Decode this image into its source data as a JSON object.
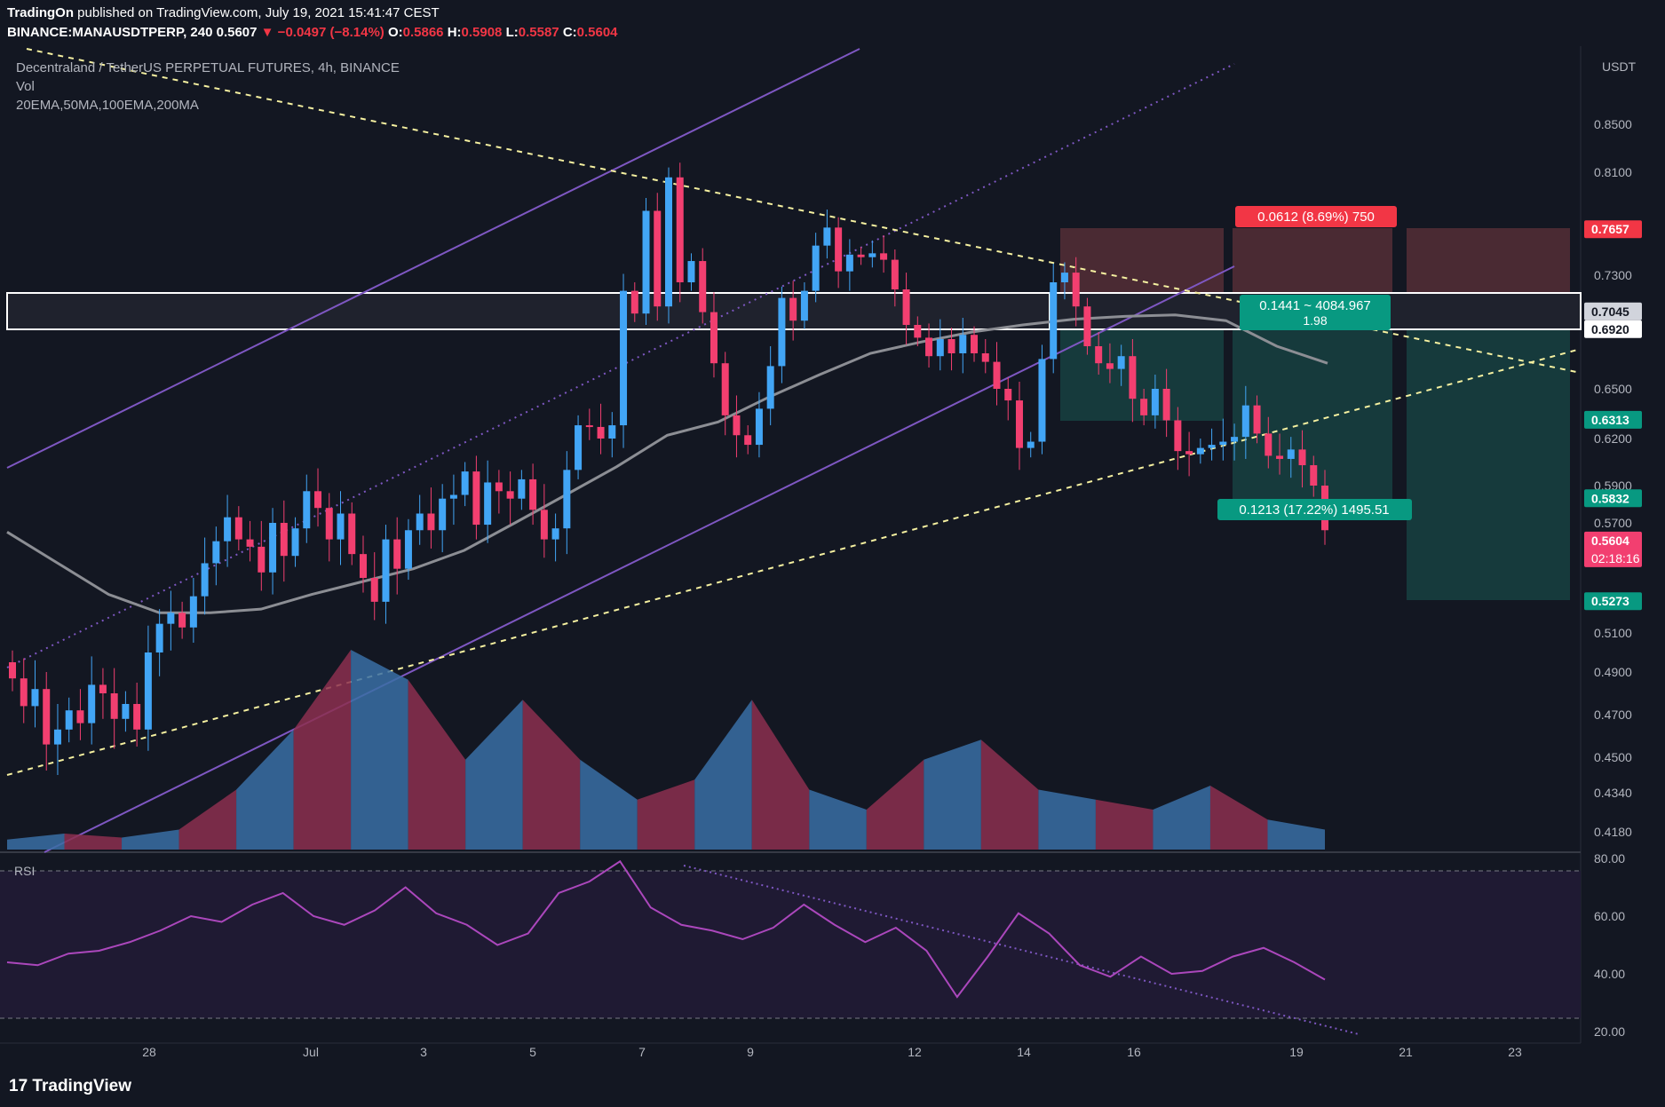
{
  "header": {
    "publisher": "TradingOn",
    "published_text": "published on TradingView.com, July 19, 2021 15:41:47 CEST",
    "symbol": "BINANCE:MANAUSDTPERP, 240",
    "price": "0.5607",
    "change": "▼ −0.0497 (−8.14%)",
    "o_label": "O:",
    "o_value": "0.5866",
    "h_label": "H:",
    "h_value": "0.5908",
    "l_label": "L:",
    "l_value": "0.5587",
    "c_label": "C:",
    "c_value": "0.5604"
  },
  "legend": {
    "title": "Decentraland / TetherUS PERPETUAL FUTURES, 4h, BINANCE",
    "vol": "Vol",
    "ma": "20EMA,50MA,100EMA,200MA"
  },
  "footer": {
    "brand": "TradingView"
  },
  "colors": {
    "background": "#131722",
    "up": "#42a5f5",
    "down": "#f23f70",
    "channel": "#7e57c2",
    "trendline": "#f5f0a0",
    "ma": "#8c8e94",
    "rsi": "#ab47bc",
    "stop_zone": "#4a2a33",
    "target_zone": "#163a3c",
    "accent_green": "#089981",
    "accent_red": "#f23645"
  },
  "chart_data": [
    {
      "type": "candlestick",
      "title": "Decentraland / TetherUS PERPETUAL FUTURES, 4h, BINANCE",
      "currency": "USDT",
      "x_ticks": [
        "28",
        "Jul",
        "3",
        "5",
        "7",
        "9",
        "12",
        "14",
        "16",
        "19",
        "21",
        "23"
      ],
      "y_ticks": [
        "0.8500",
        "0.8100",
        "0.7300",
        "0.6500",
        "0.6200",
        "0.5900",
        "0.5700",
        "0.5100",
        "0.4900",
        "0.4700",
        "0.4500",
        "0.4340",
        "0.4180"
      ],
      "series": [
        {
          "name": "close",
          "values": [
            0.487,
            0.474,
            0.482,
            0.456,
            0.463,
            0.472,
            0.466,
            0.484,
            0.48,
            0.468,
            0.475,
            0.463,
            0.5,
            0.515,
            0.521,
            0.513,
            0.53,
            0.548,
            0.56,
            0.573,
            0.561,
            0.557,
            0.543,
            0.57,
            0.552,
            0.567,
            0.587,
            0.578,
            0.561,
            0.575,
            0.553,
            0.54,
            0.527,
            0.561,
            0.545,
            0.566,
            0.575,
            0.566,
            0.583,
            0.585,
            0.599,
            0.569,
            0.592,
            0.587,
            0.583,
            0.594,
            0.577,
            0.561,
            0.567,
            0.6,
            0.628,
            0.627,
            0.62,
            0.628,
            0.719,
            0.703,
            0.78,
            0.708,
            0.806,
            0.725,
            0.741,
            0.704,
            0.668,
            0.634,
            0.622,
            0.616,
            0.638,
            0.666,
            0.714,
            0.698,
            0.719,
            0.753,
            0.767,
            0.733,
            0.746,
            0.744,
            0.747,
            0.742,
            0.72,
            0.695,
            0.686,
            0.673,
            0.685,
            0.675,
            0.688,
            0.675,
            0.669,
            0.65,
            0.643,
            0.614,
            0.618,
            0.671,
            0.725,
            0.732,
            0.708,
            0.68,
            0.668,
            0.664,
            0.673,
            0.644,
            0.634,
            0.65,
            0.631,
            0.612,
            0.61,
            0.614,
            0.616,
            0.618,
            0.621,
            0.64,
            0.623,
            0.609,
            0.607,
            0.613,
            0.603,
            0.59,
            0.566
          ]
        },
        {
          "name": "20EMA",
          "values": [
            0.565,
            0.548,
            0.531,
            0.521,
            0.521,
            0.523,
            0.531,
            0.538,
            0.545,
            0.555,
            0.57,
            0.585,
            0.602,
            0.622,
            0.63,
            0.645,
            0.66,
            0.675,
            0.683,
            0.69,
            0.695,
            0.699,
            0.701,
            0.702,
            0.698,
            0.68,
            0.668
          ]
        },
        {
          "name": "Vol",
          "values": [
            0.05,
            0.08,
            0.06,
            0.1,
            0.3,
            0.6,
            1.0,
            0.85,
            0.45,
            0.75,
            0.45,
            0.25,
            0.35,
            0.75,
            0.3,
            0.2,
            0.45,
            0.55,
            0.3,
            0.25,
            0.2,
            0.32,
            0.15,
            0.1
          ]
        },
        {
          "name": "RSI",
          "values": [
            44,
            43,
            47,
            48,
            51,
            55,
            60,
            58,
            64,
            68,
            60,
            57,
            62,
            70,
            61,
            57,
            50,
            54,
            68,
            72,
            79,
            63,
            57,
            55,
            52,
            56,
            64,
            57,
            51,
            56,
            48,
            32,
            46,
            61,
            54,
            43,
            39,
            46,
            40,
            41,
            46,
            49,
            44,
            38
          ]
        }
      ],
      "levels": [
        "0.7657",
        "0.7045",
        "0.6920",
        "0.6313",
        "0.5832",
        "0.5604",
        "0.5273"
      ],
      "countdown": "02:18:16",
      "rsi_ticks": [
        "80.00",
        "60.00",
        "40.00",
        "20.00"
      ],
      "rsi_label": "RSI",
      "position": {
        "stop_label": "0.0612 (8.69%) 750",
        "target_label": "0.1213 (17.22%) 1495.51",
        "risk_reward_label": "1.98",
        "measure_label": "0.1441 ~ 4084.967"
      },
      "grid": false
    }
  ]
}
